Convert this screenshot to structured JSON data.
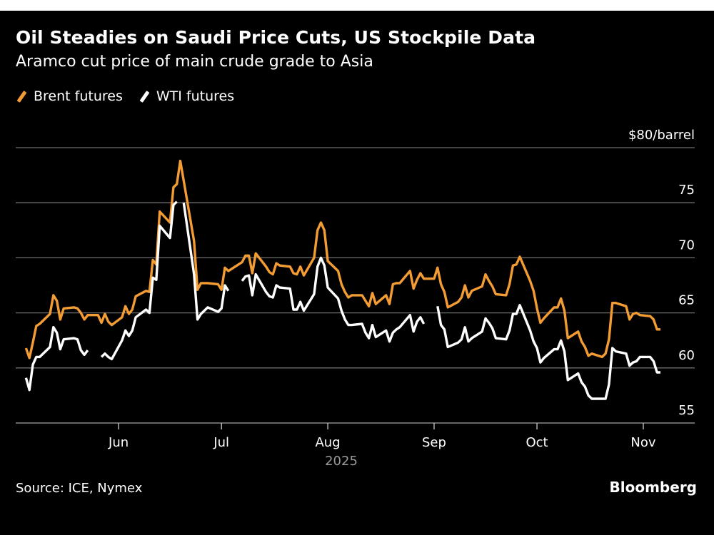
{
  "header": {
    "title": "Oil Steadies on Saudi Price Cuts, US Stockpile Data",
    "subtitle": "Aramco cut price of main crude grade to Asia"
  },
  "legend": [
    {
      "label": "Brent futures",
      "color": "#f39c34",
      "icon": "slash-swatch-icon"
    },
    {
      "label": "WTI futures",
      "color": "#ffffff",
      "icon": "slash-swatch-icon"
    }
  ],
  "footer": {
    "source": "Source: ICE, Nymex",
    "brand": "Bloomberg"
  },
  "chart_data": {
    "type": "line",
    "title": "Oil Steadies on Saudi Price Cuts, US Stockpile Data",
    "subtitle": "Aramco cut price of main crude grade to Asia",
    "xlabel": "2025",
    "ylabel": "$/barrel",
    "y_unit_label": "$80/barrel",
    "ylim": [
      55,
      80
    ],
    "yticks": [
      55,
      60,
      65,
      70,
      75,
      80
    ],
    "ytick_labels": [
      "55",
      "60",
      "65",
      "70",
      "75",
      "$80/barrel"
    ],
    "xlim": [
      "2025-05-02",
      "2025-11-16"
    ],
    "xticks": [
      {
        "date": "2025-06-01",
        "label": "Jun"
      },
      {
        "date": "2025-07-01",
        "label": "Jul"
      },
      {
        "date": "2025-08-01",
        "label": "Aug"
      },
      {
        "date": "2025-09-01",
        "label": "Sep"
      },
      {
        "date": "2025-10-01",
        "label": "Oct"
      },
      {
        "date": "2025-11-01",
        "label": "Nov"
      }
    ],
    "year_label": "2025",
    "grid": true,
    "legend_position": "top-left",
    "series": [
      {
        "name": "Brent futures",
        "color": "#f39c34",
        "points": [
          [
            "2025-05-05",
            61.8
          ],
          [
            "2025-05-06",
            60.9
          ],
          [
            "2025-05-07",
            62.3
          ],
          [
            "2025-05-08",
            63.8
          ],
          [
            "2025-05-09",
            64.0
          ],
          [
            "2025-05-12",
            64.9
          ],
          [
            "2025-05-13",
            66.6
          ],
          [
            "2025-05-14",
            66.1
          ],
          [
            "2025-05-15",
            64.4
          ],
          [
            "2025-05-16",
            65.4
          ],
          [
            "2025-05-19",
            65.5
          ],
          [
            "2025-05-20",
            65.4
          ],
          [
            "2025-05-21",
            65.0
          ],
          [
            "2025-05-22",
            64.4
          ],
          [
            "2025-05-23",
            64.8
          ],
          [
            "2025-05-26",
            64.8
          ],
          [
            "2025-05-27",
            64.1
          ],
          [
            "2025-05-28",
            64.9
          ],
          [
            "2025-05-29",
            64.2
          ],
          [
            "2025-05-30",
            63.9
          ],
          [
            "2025-06-02",
            64.6
          ],
          [
            "2025-06-03",
            65.6
          ],
          [
            "2025-06-04",
            64.9
          ],
          [
            "2025-06-05",
            65.3
          ],
          [
            "2025-06-06",
            66.5
          ],
          [
            "2025-06-09",
            67.0
          ],
          [
            "2025-06-10",
            66.9
          ],
          [
            "2025-06-11",
            69.8
          ],
          [
            "2025-06-12",
            69.4
          ],
          [
            "2025-06-13",
            74.2
          ],
          [
            "2025-06-16",
            73.2
          ],
          [
            "2025-06-17",
            76.4
          ],
          [
            "2025-06-18",
            76.7
          ],
          [
            "2025-06-19",
            78.8
          ],
          [
            "2025-06-20",
            77.0
          ],
          [
            "2025-06-23",
            71.5
          ],
          [
            "2025-06-24",
            67.1
          ],
          [
            "2025-06-25",
            67.7
          ],
          [
            "2025-06-26",
            67.7
          ],
          [
            "2025-06-27",
            67.7
          ],
          [
            "2025-06-30",
            67.6
          ],
          [
            "2025-07-01",
            67.1
          ],
          [
            "2025-07-02",
            69.1
          ],
          [
            "2025-07-03",
            68.8
          ],
          [
            "2025-07-07",
            69.6
          ],
          [
            "2025-07-08",
            70.2
          ],
          [
            "2025-07-09",
            70.2
          ],
          [
            "2025-07-10",
            68.6
          ],
          [
            "2025-07-11",
            70.4
          ],
          [
            "2025-07-14",
            69.2
          ],
          [
            "2025-07-15",
            68.7
          ],
          [
            "2025-07-16",
            68.5
          ],
          [
            "2025-07-17",
            69.5
          ],
          [
            "2025-07-18",
            69.3
          ],
          [
            "2025-07-21",
            69.2
          ],
          [
            "2025-07-22",
            68.6
          ],
          [
            "2025-07-23",
            68.5
          ],
          [
            "2025-07-24",
            69.2
          ],
          [
            "2025-07-25",
            68.4
          ],
          [
            "2025-07-28",
            70.0
          ],
          [
            "2025-07-29",
            72.5
          ],
          [
            "2025-07-30",
            73.2
          ],
          [
            "2025-07-31",
            72.5
          ],
          [
            "2025-08-01",
            69.7
          ],
          [
            "2025-08-04",
            68.8
          ],
          [
            "2025-08-05",
            67.6
          ],
          [
            "2025-08-06",
            66.9
          ],
          [
            "2025-08-07",
            66.4
          ],
          [
            "2025-08-08",
            66.6
          ],
          [
            "2025-08-11",
            66.6
          ],
          [
            "2025-08-12",
            66.1
          ],
          [
            "2025-08-13",
            65.6
          ],
          [
            "2025-08-14",
            66.8
          ],
          [
            "2025-08-15",
            65.8
          ],
          [
            "2025-08-18",
            66.6
          ],
          [
            "2025-08-19",
            65.8
          ],
          [
            "2025-08-20",
            67.6
          ],
          [
            "2025-08-21",
            67.7
          ],
          [
            "2025-08-22",
            67.7
          ],
          [
            "2025-08-25",
            68.8
          ],
          [
            "2025-08-26",
            67.2
          ],
          [
            "2025-08-27",
            68.0
          ],
          [
            "2025-08-28",
            68.6
          ],
          [
            "2025-08-29",
            68.1
          ],
          [
            "2025-09-01",
            68.1
          ],
          [
            "2025-09-02",
            69.1
          ],
          [
            "2025-09-03",
            67.6
          ],
          [
            "2025-09-04",
            66.9
          ],
          [
            "2025-09-05",
            65.5
          ],
          [
            "2025-09-08",
            66.0
          ],
          [
            "2025-09-09",
            66.4
          ],
          [
            "2025-09-10",
            67.5
          ],
          [
            "2025-09-11",
            66.4
          ],
          [
            "2025-09-12",
            67.0
          ],
          [
            "2025-09-15",
            67.4
          ],
          [
            "2025-09-16",
            68.5
          ],
          [
            "2025-09-17",
            67.9
          ],
          [
            "2025-09-18",
            67.4
          ],
          [
            "2025-09-19",
            66.7
          ],
          [
            "2025-09-22",
            66.6
          ],
          [
            "2025-09-23",
            67.6
          ],
          [
            "2025-09-24",
            69.3
          ],
          [
            "2025-09-25",
            69.4
          ],
          [
            "2025-09-26",
            70.1
          ],
          [
            "2025-09-29",
            67.9
          ],
          [
            "2025-09-30",
            67.0
          ],
          [
            "2025-10-01",
            65.4
          ],
          [
            "2025-10-02",
            64.1
          ],
          [
            "2025-10-03",
            64.5
          ],
          [
            "2025-10-06",
            65.5
          ],
          [
            "2025-10-07",
            65.5
          ],
          [
            "2025-10-08",
            66.3
          ],
          [
            "2025-10-09",
            65.2
          ],
          [
            "2025-10-10",
            62.7
          ],
          [
            "2025-10-13",
            63.3
          ],
          [
            "2025-10-14",
            62.4
          ],
          [
            "2025-10-15",
            61.9
          ],
          [
            "2025-10-16",
            61.1
          ],
          [
            "2025-10-17",
            61.3
          ],
          [
            "2025-10-20",
            61.0
          ],
          [
            "2025-10-21",
            61.3
          ],
          [
            "2025-10-22",
            62.6
          ],
          [
            "2025-10-23",
            65.9
          ],
          [
            "2025-10-24",
            65.9
          ],
          [
            "2025-10-27",
            65.6
          ],
          [
            "2025-10-28",
            64.4
          ],
          [
            "2025-10-29",
            64.9
          ],
          [
            "2025-10-30",
            65.0
          ],
          [
            "2025-10-31",
            64.8
          ],
          [
            "2025-11-03",
            64.7
          ],
          [
            "2025-11-04",
            64.4
          ],
          [
            "2025-11-05",
            63.5
          ],
          [
            "2025-11-06",
            63.5
          ]
        ]
      },
      {
        "name": "WTI futures",
        "color": "#ffffff",
        "points": [
          [
            "2025-05-05",
            59.1
          ],
          [
            "2025-05-06",
            58.0
          ],
          [
            "2025-05-07",
            60.3
          ],
          [
            "2025-05-08",
            61.0
          ],
          [
            "2025-05-09",
            61.0
          ],
          [
            "2025-05-12",
            61.9
          ],
          [
            "2025-05-13",
            63.7
          ],
          [
            "2025-05-14",
            63.2
          ],
          [
            "2025-05-15",
            61.7
          ],
          [
            "2025-05-16",
            62.6
          ],
          [
            "2025-05-19",
            62.7
          ],
          [
            "2025-05-20",
            62.6
          ],
          [
            "2025-05-21",
            61.6
          ],
          [
            "2025-05-22",
            61.2
          ],
          [
            "2025-05-23",
            61.6
          ],
          [
            "2025-05-26",
            null
          ],
          [
            "2025-05-27",
            61.0
          ],
          [
            "2025-05-28",
            61.3
          ],
          [
            "2025-05-29",
            61.0
          ],
          [
            "2025-05-30",
            60.8
          ],
          [
            "2025-06-02",
            62.5
          ],
          [
            "2025-06-03",
            63.4
          ],
          [
            "2025-06-04",
            62.9
          ],
          [
            "2025-06-05",
            63.4
          ],
          [
            "2025-06-06",
            64.6
          ],
          [
            "2025-06-09",
            65.3
          ],
          [
            "2025-06-10",
            65.0
          ],
          [
            "2025-06-11",
            68.2
          ],
          [
            "2025-06-12",
            68.0
          ],
          [
            "2025-06-13",
            72.9
          ],
          [
            "2025-06-16",
            71.8
          ],
          [
            "2025-06-17",
            74.8
          ],
          [
            "2025-06-18",
            75.1
          ],
          [
            "2025-06-19",
            null
          ],
          [
            "2025-06-20",
            75.0
          ],
          [
            "2025-06-23",
            68.5
          ],
          [
            "2025-06-24",
            64.4
          ],
          [
            "2025-06-25",
            64.9
          ],
          [
            "2025-06-26",
            65.2
          ],
          [
            "2025-06-27",
            65.5
          ],
          [
            "2025-06-30",
            65.1
          ],
          [
            "2025-07-01",
            65.4
          ],
          [
            "2025-07-02",
            67.5
          ],
          [
            "2025-07-03",
            67.0
          ],
          [
            "2025-07-04",
            null
          ],
          [
            "2025-07-07",
            67.9
          ],
          [
            "2025-07-08",
            68.3
          ],
          [
            "2025-07-09",
            68.4
          ],
          [
            "2025-07-10",
            66.6
          ],
          [
            "2025-07-11",
            68.5
          ],
          [
            "2025-07-14",
            66.9
          ],
          [
            "2025-07-15",
            66.5
          ],
          [
            "2025-07-16",
            66.4
          ],
          [
            "2025-07-17",
            67.5
          ],
          [
            "2025-07-18",
            67.3
          ],
          [
            "2025-07-21",
            67.2
          ],
          [
            "2025-07-22",
            65.3
          ],
          [
            "2025-07-23",
            65.3
          ],
          [
            "2025-07-24",
            66.0
          ],
          [
            "2025-07-25",
            65.2
          ],
          [
            "2025-07-28",
            66.7
          ],
          [
            "2025-07-29",
            69.2
          ],
          [
            "2025-07-30",
            70.0
          ],
          [
            "2025-07-31",
            69.3
          ],
          [
            "2025-08-01",
            67.3
          ],
          [
            "2025-08-04",
            66.3
          ],
          [
            "2025-08-05",
            65.2
          ],
          [
            "2025-08-06",
            64.4
          ],
          [
            "2025-08-07",
            63.9
          ],
          [
            "2025-08-08",
            63.9
          ],
          [
            "2025-08-11",
            64.0
          ],
          [
            "2025-08-12",
            63.2
          ],
          [
            "2025-08-13",
            62.7
          ],
          [
            "2025-08-14",
            63.9
          ],
          [
            "2025-08-15",
            62.8
          ],
          [
            "2025-08-18",
            63.4
          ],
          [
            "2025-08-19",
            62.4
          ],
          [
            "2025-08-20",
            63.2
          ],
          [
            "2025-08-21",
            63.5
          ],
          [
            "2025-08-22",
            63.7
          ],
          [
            "2025-08-25",
            64.8
          ],
          [
            "2025-08-26",
            63.3
          ],
          [
            "2025-08-27",
            64.2
          ],
          [
            "2025-08-28",
            64.6
          ],
          [
            "2025-08-29",
            64.0
          ],
          [
            "2025-09-01",
            null
          ],
          [
            "2025-09-02",
            65.6
          ],
          [
            "2025-09-03",
            63.9
          ],
          [
            "2025-09-04",
            63.5
          ],
          [
            "2025-09-05",
            61.9
          ],
          [
            "2025-09-08",
            62.3
          ],
          [
            "2025-09-09",
            62.6
          ],
          [
            "2025-09-10",
            63.7
          ],
          [
            "2025-09-11",
            62.4
          ],
          [
            "2025-09-12",
            62.7
          ],
          [
            "2025-09-15",
            63.3
          ],
          [
            "2025-09-16",
            64.5
          ],
          [
            "2025-09-17",
            64.1
          ],
          [
            "2025-09-18",
            63.6
          ],
          [
            "2025-09-19",
            62.7
          ],
          [
            "2025-09-22",
            62.6
          ],
          [
            "2025-09-23",
            63.4
          ],
          [
            "2025-09-24",
            64.9
          ],
          [
            "2025-09-25",
            64.9
          ],
          [
            "2025-09-26",
            65.7
          ],
          [
            "2025-09-29",
            63.4
          ],
          [
            "2025-09-30",
            62.4
          ],
          [
            "2025-10-01",
            61.8
          ],
          [
            "2025-10-02",
            60.5
          ],
          [
            "2025-10-03",
            60.9
          ],
          [
            "2025-10-06",
            61.7
          ],
          [
            "2025-10-07",
            61.7
          ],
          [
            "2025-10-08",
            62.5
          ],
          [
            "2025-10-09",
            61.5
          ],
          [
            "2025-10-10",
            58.9
          ],
          [
            "2025-10-13",
            59.5
          ],
          [
            "2025-10-14",
            58.7
          ],
          [
            "2025-10-15",
            58.3
          ],
          [
            "2025-10-16",
            57.5
          ],
          [
            "2025-10-17",
            57.2
          ],
          [
            "2025-10-20",
            57.2
          ],
          [
            "2025-10-21",
            57.2
          ],
          [
            "2025-10-22",
            58.5
          ],
          [
            "2025-10-23",
            61.8
          ],
          [
            "2025-10-24",
            61.5
          ],
          [
            "2025-10-27",
            61.3
          ],
          [
            "2025-10-28",
            60.2
          ],
          [
            "2025-10-29",
            60.5
          ],
          [
            "2025-10-30",
            60.6
          ],
          [
            "2025-10-31",
            61.0
          ],
          [
            "2025-11-03",
            61.0
          ],
          [
            "2025-11-04",
            60.6
          ],
          [
            "2025-11-05",
            59.6
          ],
          [
            "2025-11-06",
            59.6
          ]
        ]
      }
    ]
  }
}
